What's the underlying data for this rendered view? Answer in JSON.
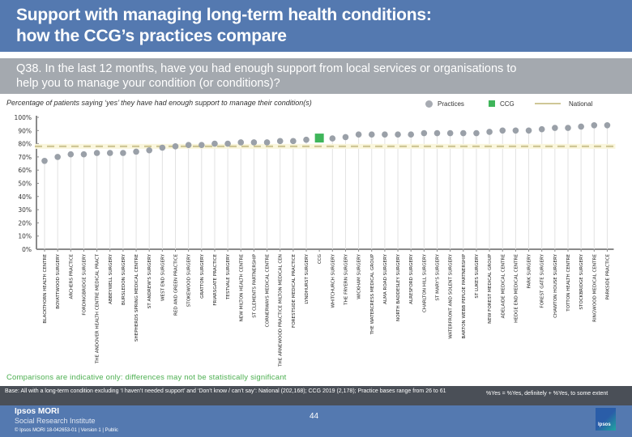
{
  "header": {
    "title_line1": "Support with managing long-term health conditions:",
    "title_line2": "how the CCG’s practices compare"
  },
  "question": {
    "line1": "Q38. In the last 12 months, have you had enough support from local services or organisations to",
    "line2": "help you to manage your condition (or conditions)?"
  },
  "legend": {
    "practices": "Practices",
    "ccg": "CCG",
    "national": "National"
  },
  "colors": {
    "practices": "#9aa0a8",
    "ccg": "#3fb55a",
    "national": "#cfc796",
    "header": "#5479b0",
    "question_bar": "#a4a9af",
    "note": "#4caf50"
  },
  "chart_data": {
    "type": "scatter",
    "title": "Percentage of patients saying ‘yes’ they have had enough support to manage their condition(s)",
    "xlabel": "",
    "ylabel": "",
    "ylim": [
      0,
      100
    ],
    "yticks": [
      "0%",
      "10%",
      "20%",
      "30%",
      "40%",
      "50%",
      "60%",
      "70%",
      "80%",
      "90%",
      "100%"
    ],
    "grid": false,
    "legend_position": "top-right",
    "national": 78,
    "categories": [
      "BLACKTHORN HEALTH CENTRE",
      "BOYATTWOOD SURGERY",
      "ARCHERS PRACTICE",
      "FORDINGBRIDGE SURGERY",
      "THE ANDOVER HEALTH CENTRE MEDICAL PRACT",
      "ABBEYWELL SURGERY",
      "BURSLEDON SURGERY",
      "SHEPHERDS SPRING MEDICAL CENTRE",
      "ST ANDREW'S SURGERY",
      "WEST END SURGERY",
      "RED AND GREEN PRACTICE",
      "STOKEWOOD SURGERY",
      "GRATTON SURGERY",
      "FRIARSGATE PRACTICE",
      "TESTVALE SURGERY",
      "NEW MILTON HEALTH CENTRE",
      "ST CLEMENTS PARTNERSHIP",
      "CORNERWAYS MEDICAL CENTRE",
      "THE ARNEWOOD PRACTICE MILTON MEDICAL CEN",
      "FORESTSIDE MEDICAL PRACTICE",
      "LYNDHURST SURGERY",
      "CCG",
      "WHITCHURCH SURGERY",
      "THE FRYERN SURGERY",
      "WICKHAM SURGERY",
      "THE WATERCRESS MEDICAL GROUP",
      "ALMA ROAD SURGERY",
      "NORTH BADDESLEY SURGERY",
      "ALRESFORD SURGERY",
      "CHARLTON HILL SURGERY",
      "ST MARY'S SURGERY",
      "WATERFRONT AND SOLENT SURGERY",
      "BARTON WEBB PEPLOE PARTNERSHIP",
      "ST LUKES SURGERY",
      "NEW FOREST MEDICAL GROUP",
      "ADELAIDE MEDICAL CENTRE",
      "HEDGE END MEDICAL CENTRE",
      "PARK SURGERY",
      "FOREST GATE SURGERY",
      "CHAWTON HOUSE SURGERY",
      "TOTTON HEALTH CENTRE",
      "STOCKBRIDGE SURGERY",
      "RINGWOOD MEDICAL CENTRE",
      "PARKSIDE PRACTICE"
    ],
    "values": [
      67,
      70,
      72,
      72,
      73,
      73,
      73,
      74,
      75,
      77,
      78,
      79,
      79,
      80,
      80,
      81,
      81,
      81,
      82,
      82,
      83,
      84,
      84,
      85,
      87,
      87,
      87,
      87,
      87,
      88,
      88,
      88,
      88,
      88,
      89,
      90,
      90,
      90,
      91,
      92,
      92,
      93,
      94,
      94
    ],
    "ccg_index": 21,
    "series": [
      {
        "name": "Practices",
        "marker": "circle"
      },
      {
        "name": "CCG",
        "marker": "square"
      },
      {
        "name": "National",
        "marker": "dashed-line"
      }
    ]
  },
  "note": "Comparisons are indicative only: differences may not be statistically significant",
  "base": {
    "text": "Base: All with a long-term condition excluding ‘I haven’t needed support’ and ‘Don’t know / can’t say’: National (202,168); CCG 2019 (2,178); Practice bases range from 26 to 61",
    "definition": "%Yes = %Yes, definitely + %Yes, to some extent"
  },
  "footer": {
    "brand": "Ipsos MORI",
    "institute": "Social Research Institute",
    "copyright": "© Ipsos MORI    18-042653-01 | Version 1 | Public",
    "page": "44",
    "logo_text": "Ipsos"
  }
}
